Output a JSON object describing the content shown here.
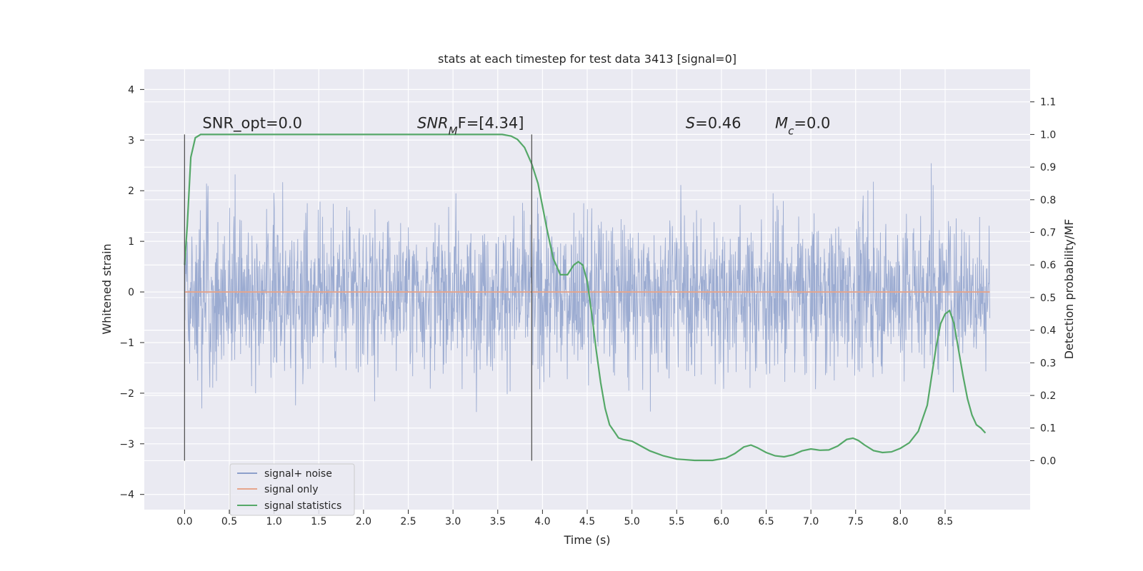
{
  "chart_data": {
    "type": "line",
    "title": "stats at each timestep for test data 3413 [signal=0]",
    "xlabel": "Time (s)",
    "ylabel": "Whitened strain",
    "y2label": "Detection probability/MF",
    "xlim": [
      -0.45,
      9.45
    ],
    "ylim": [
      -4.3,
      4.4
    ],
    "y2lim": [
      -0.15,
      1.2
    ],
    "x_ticks": [
      "0.0",
      "0.5",
      "1.0",
      "1.5",
      "2.0",
      "2.5",
      "3.0",
      "3.5",
      "4.0",
      "4.5",
      "5.0",
      "5.5",
      "6.0",
      "6.5",
      "7.0",
      "7.5",
      "8.0",
      "8.5"
    ],
    "y_ticks": [
      "4",
      "3",
      "2",
      "1",
      "0",
      "−1",
      "−2",
      "−3",
      "−4"
    ],
    "y_tick_values": [
      4,
      3,
      2,
      1,
      0,
      -1,
      -2,
      -3,
      -4
    ],
    "y2_ticks": [
      "1.1",
      "1.0",
      "0.9",
      "0.8",
      "0.7",
      "0.6",
      "0.5",
      "0.4",
      "0.3",
      "0.2",
      "0.1",
      "0.0"
    ],
    "y2_tick_values": [
      1.1,
      1.0,
      0.9,
      0.8,
      0.7,
      0.6,
      0.5,
      0.4,
      0.3,
      0.2,
      0.1,
      0.0
    ],
    "grid": true,
    "legend_position": "bottom-left",
    "colors": {
      "noise": "#8da0cb",
      "signal": "#e6a58c",
      "stats": "#55a868",
      "background": "#eaeaf2",
      "grid": "#ffffff",
      "vline": "#555555"
    },
    "annotations": [
      {
        "label": "SNR_opt=0.0",
        "x": 0.2
      },
      {
        "label": "SNR",
        "sub": "M",
        "after": "F=[4.34]",
        "x": 2.6
      },
      {
        "label": "S",
        "after": "=0.46",
        "x": 5.6
      },
      {
        "label": "M",
        "sub": "c",
        "after": "=0.0",
        "x": 6.6
      }
    ],
    "vlines": [
      0.0,
      3.88
    ],
    "noise_series": {
      "name": "signal+ noise",
      "x_range": [
        0.0,
        9.0
      ],
      "y_envelope": [
        -4.0,
        4.0
      ]
    },
    "signal_series": {
      "name": "signal only",
      "x": [
        0.0,
        9.0
      ],
      "y": [
        0.0,
        0.0
      ]
    },
    "stats_series": {
      "name": "signal statistics",
      "x": [
        0.0,
        0.03,
        0.07,
        0.12,
        0.18,
        0.25,
        0.35,
        0.5,
        1.0,
        1.5,
        2.0,
        2.5,
        3.0,
        3.4,
        3.55,
        3.65,
        3.72,
        3.8,
        3.88,
        3.95,
        4.0,
        4.05,
        4.12,
        4.2,
        4.28,
        4.35,
        4.4,
        4.45,
        4.5,
        4.55,
        4.6,
        4.65,
        4.7,
        4.75,
        4.8,
        4.85,
        4.9,
        5.0,
        5.1,
        5.2,
        5.35,
        5.5,
        5.7,
        5.9,
        6.05,
        6.15,
        6.25,
        6.33,
        6.4,
        6.5,
        6.6,
        6.7,
        6.8,
        6.9,
        7.0,
        7.1,
        7.2,
        7.3,
        7.4,
        7.47,
        7.53,
        7.6,
        7.7,
        7.8,
        7.9,
        8.0,
        8.1,
        8.2,
        8.3,
        8.35,
        8.4,
        8.45,
        8.5,
        8.55,
        8.6,
        8.65,
        8.7,
        8.75,
        8.8,
        8.85,
        8.9,
        8.95
      ],
      "y": [
        0.6,
        0.72,
        0.93,
        0.99,
        1.0,
        1.0,
        1.0,
        1.0,
        1.0,
        1.0,
        1.0,
        1.0,
        1.0,
        1.0,
        1.0,
        0.995,
        0.985,
        0.96,
        0.91,
        0.85,
        0.78,
        0.71,
        0.62,
        0.57,
        0.57,
        0.6,
        0.61,
        0.6,
        0.55,
        0.45,
        0.34,
        0.24,
        0.16,
        0.11,
        0.09,
        0.07,
        0.065,
        0.06,
        0.045,
        0.03,
        0.015,
        0.005,
        0.001,
        0.001,
        0.008,
        0.022,
        0.042,
        0.048,
        0.04,
        0.025,
        0.015,
        0.012,
        0.018,
        0.03,
        0.036,
        0.032,
        0.033,
        0.045,
        0.065,
        0.069,
        0.062,
        0.048,
        0.031,
        0.025,
        0.027,
        0.038,
        0.055,
        0.09,
        0.17,
        0.26,
        0.35,
        0.42,
        0.45,
        0.46,
        0.42,
        0.34,
        0.26,
        0.19,
        0.14,
        0.11,
        0.1,
        0.085
      ]
    }
  }
}
